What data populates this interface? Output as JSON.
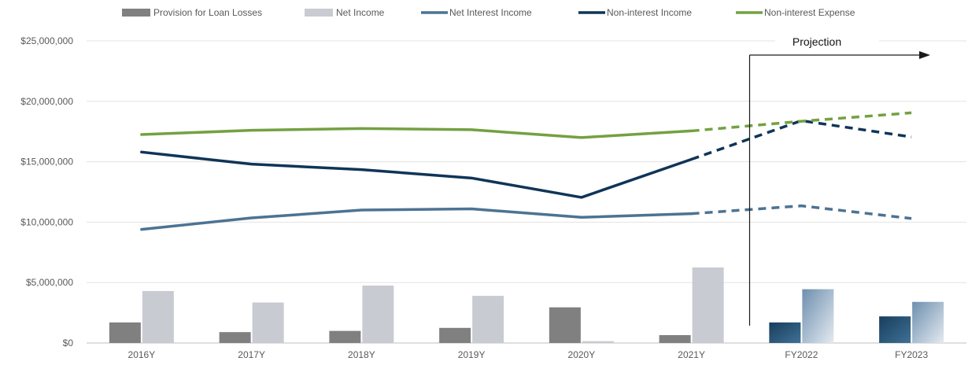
{
  "chart_data": {
    "type": "bar",
    "categories": [
      "2016Y",
      "2017Y",
      "2018Y",
      "2019Y",
      "2020Y",
      "2021Y",
      "FY2022",
      "FY2023"
    ],
    "projection_start_index": 6,
    "y_axis": {
      "min": 0,
      "max": 25000000,
      "ticks": [
        0,
        5000000,
        10000000,
        15000000,
        20000000,
        25000000
      ],
      "tick_labels": [
        "$0",
        "$5,000,000",
        "$10,000,000",
        "$15,000,000",
        "$20,000,000",
        "$25,000,000"
      ],
      "grid": true
    },
    "legend": {
      "position": "top"
    },
    "series": [
      {
        "name": "Provision for Loan Losses",
        "kind": "bar",
        "color": "#808080",
        "projected_color": "#214d70",
        "values": [
          1700000,
          900000,
          1000000,
          1250000,
          2950000,
          650000,
          1700000,
          2200000
        ]
      },
      {
        "name": "Net Income",
        "kind": "bar",
        "color": "#c8cbd2",
        "projected_color": "#a9bdd1",
        "values": [
          4300000,
          3350000,
          4750000,
          3900000,
          150000,
          6250000,
          4450000,
          3400000
        ]
      },
      {
        "name": "Net Interest Income",
        "kind": "line",
        "color": "#4c7393",
        "values": [
          9400000,
          10350000,
          11000000,
          11100000,
          10400000,
          10700000,
          11350000,
          10300000
        ]
      },
      {
        "name": "Non-interest Income",
        "kind": "line",
        "color": "#0f3557",
        "values": [
          15800000,
          14800000,
          14350000,
          13650000,
          12050000,
          15200000,
          18400000,
          17050000
        ]
      },
      {
        "name": "Non-interest Expense",
        "kind": "line",
        "color": "#73a142",
        "values": [
          17250000,
          17600000,
          17750000,
          17650000,
          17000000,
          17550000,
          18350000,
          19050000
        ]
      }
    ],
    "annotation": {
      "text": "Projection"
    }
  }
}
